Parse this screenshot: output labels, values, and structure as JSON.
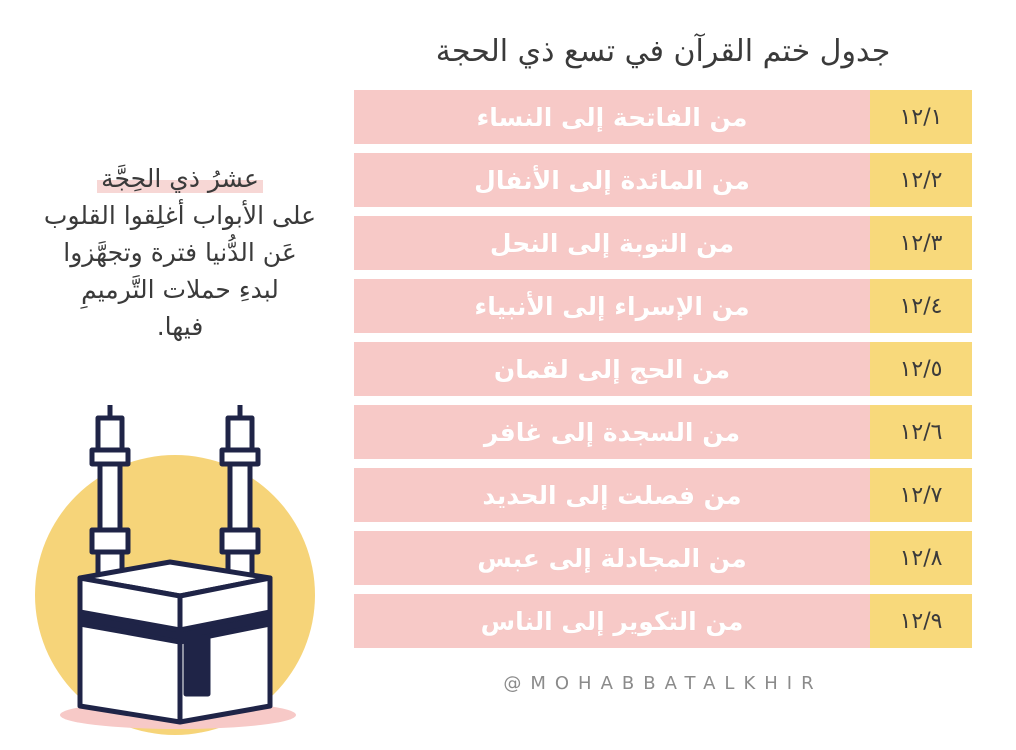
{
  "title": "جدول ختم القرآن في تسع ذي الحجة",
  "rows": [
    {
      "date": "١٢/١",
      "reading": "من الفاتحة إلى النساء"
    },
    {
      "date": "١٢/٢",
      "reading": "من المائدة إلى الأنفال"
    },
    {
      "date": "١٢/٣",
      "reading": "من التوبة إلى النحل"
    },
    {
      "date": "١٢/٤",
      "reading": "من الإسراء إلى الأنبياء"
    },
    {
      "date": "١٢/٥",
      "reading": "من الحج إلى لقمان"
    },
    {
      "date": "١٢/٦",
      "reading": "من السجدة إلى غافر"
    },
    {
      "date": "١٢/٧",
      "reading": "من فصلت إلى الحديد"
    },
    {
      "date": "١٢/٨",
      "reading": "من المجادلة إلى عبس"
    },
    {
      "date": "١٢/٩",
      "reading": "من التكوير إلى الناس"
    }
  ],
  "caption": {
    "heading": "عشرُ ذي الحِجَّة",
    "lines": [
      "على الأبواب أغلِقوا القلوب",
      "عَن الدُّنيا فترة وتجهَّزوا",
      "لبدءِ حملات التَّرميمِ",
      "فيها."
    ]
  },
  "handle": "@MOHABBATALKHIR",
  "colors": {
    "row_pink": "#f7c9c7",
    "date_yellow": "#f8d97b",
    "circle_yellow": "#f6d479",
    "outline_navy": "#1f2447"
  },
  "illustration": "kaaba-with-minarets"
}
